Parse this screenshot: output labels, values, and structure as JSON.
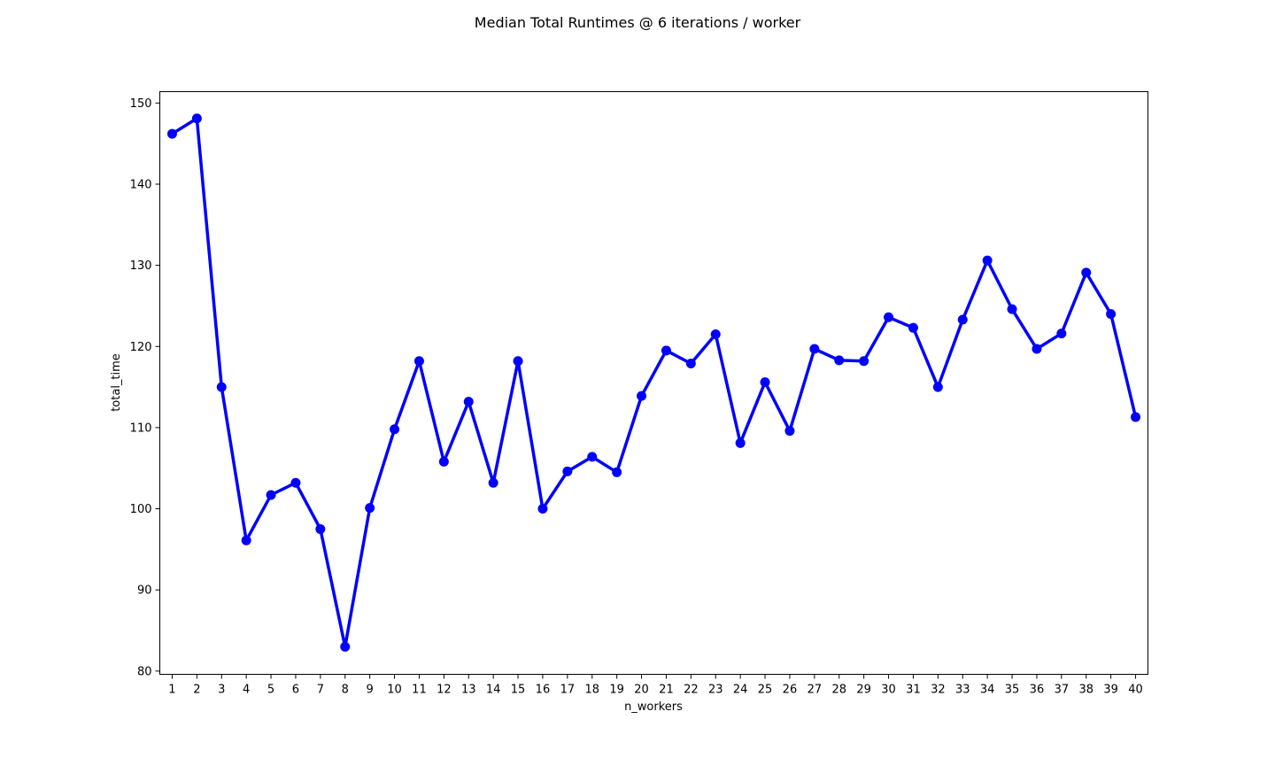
{
  "chart_data": {
    "type": "line",
    "title": "Median Total Runtimes @ 6 iterations / worker",
    "xlabel": "n_workers",
    "ylabel": "total_time",
    "x": [
      1,
      2,
      3,
      4,
      5,
      6,
      7,
      8,
      9,
      10,
      11,
      12,
      13,
      14,
      15,
      16,
      17,
      18,
      19,
      20,
      21,
      22,
      23,
      24,
      25,
      26,
      27,
      28,
      29,
      30,
      31,
      32,
      33,
      34,
      35,
      36,
      37,
      38,
      39,
      40
    ],
    "series": [
      {
        "values": [
          146.2,
          148.1,
          115.0,
          96.1,
          101.7,
          103.2,
          97.5,
          83.0,
          100.1,
          109.8,
          118.2,
          105.8,
          113.2,
          103.2,
          118.2,
          100.0,
          104.6,
          106.4,
          104.5,
          113.9,
          119.5,
          117.9,
          121.5,
          108.1,
          115.6,
          109.6,
          119.7,
          118.3,
          118.2,
          123.6,
          122.3,
          115.0,
          123.3,
          130.6,
          124.6,
          119.7,
          121.6,
          129.1,
          124.0,
          111.3
        ],
        "color": "#0000ff"
      }
    ],
    "yticks": [
      80,
      90,
      100,
      110,
      120,
      130,
      140,
      150
    ],
    "ylim": [
      79.6,
      151.4
    ],
    "xlim": [
      0.5,
      40.5
    ],
    "grid": false,
    "legend": "none"
  }
}
